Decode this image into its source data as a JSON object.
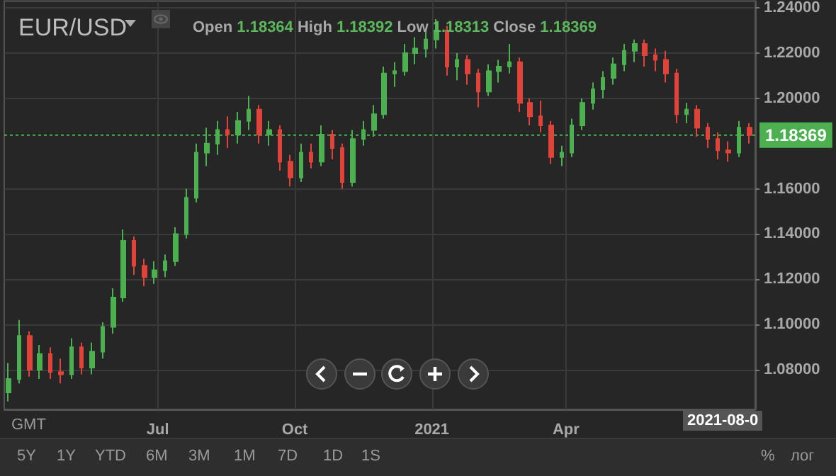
{
  "chart_data": {
    "type": "candlestick",
    "title": "EUR/USD",
    "subtitle": "Open 1.18364 High 1.18392 Low 1.18313 Close 1.18369",
    "x": [
      "2020-03-23",
      "2020-03-30",
      "2020-04-06",
      "2020-04-13",
      "2020-04-20",
      "2020-04-27",
      "2020-05-04",
      "2020-05-11",
      "2020-05-18",
      "2020-05-25",
      "2020-06-01",
      "2020-06-08",
      "2020-06-15",
      "2020-06-22",
      "2020-06-29",
      "2020-07-06",
      "2020-07-13",
      "2020-07-20",
      "2020-07-27",
      "2020-08-03",
      "2020-08-10",
      "2020-08-17",
      "2020-08-24",
      "2020-08-31",
      "2020-09-07",
      "2020-09-14",
      "2020-09-21",
      "2020-09-28",
      "2020-10-05",
      "2020-10-12",
      "2020-10-19",
      "2020-10-26",
      "2020-11-02",
      "2020-11-09",
      "2020-11-16",
      "2020-11-23",
      "2020-11-30",
      "2020-12-07",
      "2020-12-14",
      "2020-12-21",
      "2020-12-28",
      "2021-01-04",
      "2021-01-11",
      "2021-01-18",
      "2021-01-25",
      "2021-02-01",
      "2021-02-08",
      "2021-02-15",
      "2021-02-22",
      "2021-03-01",
      "2021-03-08",
      "2021-03-15",
      "2021-03-22",
      "2021-03-29",
      "2021-04-05",
      "2021-04-12",
      "2021-04-19",
      "2021-04-26",
      "2021-05-03",
      "2021-05-10",
      "2021-05-17",
      "2021-05-24",
      "2021-05-31",
      "2021-06-07",
      "2021-06-14",
      "2021-06-21",
      "2021-06-28",
      "2021-07-05",
      "2021-07-12",
      "2021-07-19",
      "2021-07-26",
      "2021-08-02"
    ],
    "ohlc": [
      [
        1.07,
        1.083,
        1.066,
        1.076
      ],
      [
        1.076,
        1.102,
        1.074,
        1.095
      ],
      [
        1.095,
        1.097,
        1.077,
        1.08
      ],
      [
        1.08,
        1.091,
        1.076,
        1.087
      ],
      [
        1.087,
        1.09,
        1.076,
        1.079
      ],
      [
        1.079,
        1.085,
        1.074,
        1.078
      ],
      [
        1.078,
        1.094,
        1.076,
        1.09
      ],
      [
        1.09,
        1.092,
        1.078,
        1.081
      ],
      [
        1.081,
        1.092,
        1.078,
        1.088
      ],
      [
        1.088,
        1.101,
        1.085,
        1.099
      ],
      [
        1.099,
        1.116,
        1.096,
        1.112
      ],
      [
        1.112,
        1.142,
        1.11,
        1.137
      ],
      [
        1.137,
        1.139,
        1.122,
        1.126
      ],
      [
        1.126,
        1.129,
        1.117,
        1.121
      ],
      [
        1.121,
        1.128,
        1.118,
        1.124
      ],
      [
        1.124,
        1.131,
        1.121,
        1.128
      ],
      [
        1.128,
        1.143,
        1.126,
        1.14
      ],
      [
        1.14,
        1.16,
        1.138,
        1.156
      ],
      [
        1.156,
        1.18,
        1.154,
        1.176
      ],
      [
        1.176,
        1.187,
        1.17,
        1.18
      ],
      [
        1.18,
        1.19,
        1.175,
        1.186
      ],
      [
        1.186,
        1.192,
        1.178,
        1.184
      ],
      [
        1.184,
        1.194,
        1.18,
        1.19
      ],
      [
        1.19,
        1.201,
        1.186,
        1.195
      ],
      [
        1.195,
        1.197,
        1.18,
        1.184
      ],
      [
        1.184,
        1.19,
        1.179,
        1.186
      ],
      [
        1.186,
        1.188,
        1.168,
        1.172
      ],
      [
        1.172,
        1.175,
        1.161,
        1.165
      ],
      [
        1.165,
        1.18,
        1.163,
        1.176
      ],
      [
        1.176,
        1.18,
        1.169,
        1.172
      ],
      [
        1.172,
        1.188,
        1.17,
        1.184
      ],
      [
        1.184,
        1.186,
        1.173,
        1.178
      ],
      [
        1.178,
        1.18,
        1.16,
        1.163
      ],
      [
        1.163,
        1.186,
        1.161,
        1.182
      ],
      [
        1.182,
        1.19,
        1.179,
        1.186
      ],
      [
        1.186,
        1.197,
        1.183,
        1.193
      ],
      [
        1.193,
        1.214,
        1.191,
        1.211
      ],
      [
        1.211,
        1.216,
        1.205,
        1.212
      ],
      [
        1.212,
        1.224,
        1.21,
        1.22
      ],
      [
        1.22,
        1.227,
        1.215,
        1.222
      ],
      [
        1.222,
        1.23,
        1.218,
        1.226
      ],
      [
        1.226,
        1.235,
        1.222,
        1.23
      ],
      [
        1.23,
        1.232,
        1.21,
        1.214
      ],
      [
        1.214,
        1.22,
        1.208,
        1.217
      ],
      [
        1.217,
        1.219,
        1.206,
        1.211
      ],
      [
        1.211,
        1.213,
        1.196,
        1.203
      ],
      [
        1.203,
        1.215,
        1.201,
        1.212
      ],
      [
        1.212,
        1.217,
        1.207,
        1.214
      ],
      [
        1.214,
        1.224,
        1.211,
        1.216
      ],
      [
        1.216,
        1.218,
        1.194,
        1.198
      ],
      [
        1.198,
        1.2,
        1.188,
        1.192
      ],
      [
        1.192,
        1.199,
        1.185,
        1.188
      ],
      [
        1.188,
        1.19,
        1.171,
        1.174
      ],
      [
        1.174,
        1.179,
        1.17,
        1.176
      ],
      [
        1.176,
        1.191,
        1.174,
        1.188
      ],
      [
        1.188,
        1.2,
        1.186,
        1.198
      ],
      [
        1.198,
        1.207,
        1.195,
        1.204
      ],
      [
        1.204,
        1.212,
        1.2,
        1.209
      ],
      [
        1.209,
        1.218,
        1.206,
        1.215
      ],
      [
        1.215,
        1.224,
        1.212,
        1.221
      ],
      [
        1.221,
        1.226,
        1.216,
        1.224
      ],
      [
        1.224,
        1.226,
        1.214,
        1.219
      ],
      [
        1.219,
        1.222,
        1.212,
        1.217
      ],
      [
        1.217,
        1.221,
        1.207,
        1.211
      ],
      [
        1.211,
        1.213,
        1.189,
        1.193
      ],
      [
        1.193,
        1.198,
        1.189,
        1.195
      ],
      [
        1.195,
        1.197,
        1.183,
        1.187
      ],
      [
        1.187,
        1.189,
        1.178,
        1.182
      ],
      [
        1.182,
        1.185,
        1.173,
        1.177
      ],
      [
        1.177,
        1.181,
        1.172,
        1.176
      ],
      [
        1.176,
        1.19,
        1.174,
        1.187
      ],
      [
        1.187,
        1.189,
        1.18,
        1.18369
      ]
    ],
    "colors": [
      "#4caf50",
      "#4caf50",
      "#e0433a",
      "#4caf50",
      "#e0433a",
      "#e0433a",
      "#4caf50",
      "#e0433a",
      "#4caf50",
      "#4caf50",
      "#4caf50",
      "#4caf50",
      "#e0433a",
      "#e0433a",
      "#4caf50",
      "#4caf50",
      "#4caf50",
      "#4caf50",
      "#4caf50",
      "#4caf50",
      "#4caf50",
      "#e0433a",
      "#4caf50",
      "#4caf50",
      "#e0433a",
      "#4caf50",
      "#e0433a",
      "#e0433a",
      "#4caf50",
      "#e0433a",
      "#4caf50",
      "#e0433a",
      "#e0433a",
      "#4caf50",
      "#4caf50",
      "#4caf50",
      "#4caf50",
      "#4caf50",
      "#4caf50",
      "#4caf50",
      "#4caf50",
      "#4caf50",
      "#e0433a",
      "#4caf50",
      "#e0433a",
      "#e0433a",
      "#4caf50",
      "#4caf50",
      "#4caf50",
      "#e0433a",
      "#e0433a",
      "#e0433a",
      "#e0433a",
      "#4caf50",
      "#4caf50",
      "#4caf50",
      "#4caf50",
      "#4caf50",
      "#4caf50",
      "#4caf50",
      "#4caf50",
      "#e0433a",
      "#e0433a",
      "#e0433a",
      "#e0433a",
      "#4caf50",
      "#e0433a",
      "#e0433a",
      "#e0433a",
      "#e0433a",
      "#4caf50",
      "#e0433a"
    ],
    "xlim": [
      "2020-03-20",
      "2021-08-06"
    ],
    "xticks": [
      {
        "value": "2020-07-01",
        "label": "Jul"
      },
      {
        "value": "2020-10-01",
        "label": "Oct"
      },
      {
        "value": "2021-01-01",
        "label": "2021"
      },
      {
        "value": "2021-04-01",
        "label": "Apr"
      }
    ],
    "ylim": [
      1.0625,
      1.243
    ],
    "yticks": [
      {
        "value": 1.08,
        "label": "1.08000"
      },
      {
        "value": 1.1,
        "label": "1.10000"
      },
      {
        "value": 1.12,
        "label": "1.12000"
      },
      {
        "value": 1.14,
        "label": "1.14000"
      },
      {
        "value": 1.16,
        "label": "1.16000"
      },
      {
        "value": 1.2,
        "label": "1.20000"
      },
      {
        "value": 1.22,
        "label": "1.22000"
      },
      {
        "value": 1.24,
        "label": "1.24000"
      }
    ],
    "ref_lines": [
      {
        "axis": "y",
        "value": 1.18369,
        "label": "1.18369",
        "color": "#4caf50",
        "line_style": "dotted"
      }
    ],
    "annotations": [
      "GMT",
      "2021-08-0",
      "5Y",
      "1Y",
      "YTD",
      "6M",
      "3M",
      "1M",
      "7D",
      "1D",
      "1S",
      "%",
      "лог"
    ],
    "grid": true
  }
}
